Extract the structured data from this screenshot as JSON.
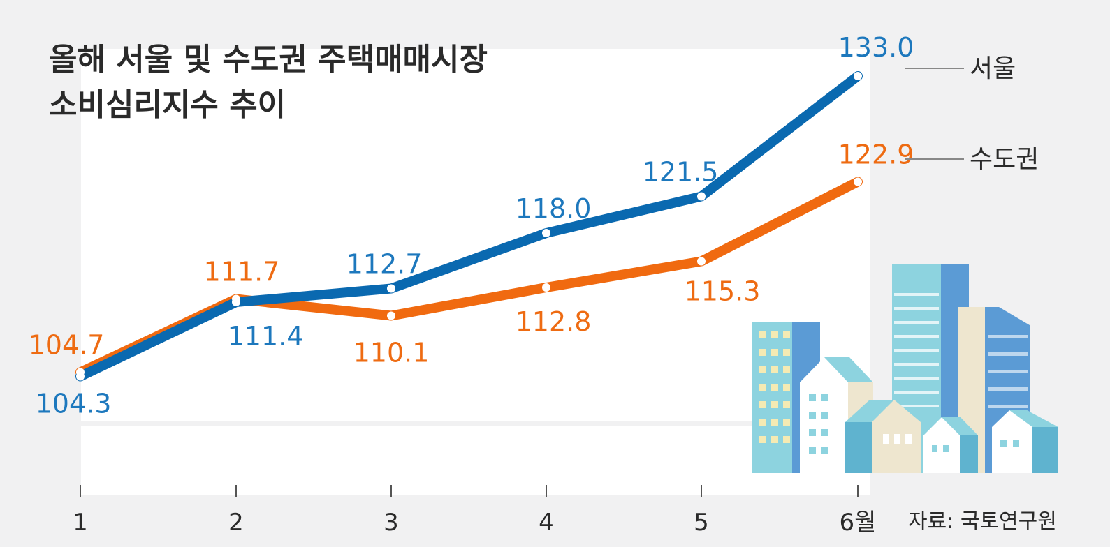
{
  "chart_data": {
    "type": "line",
    "title_lines": [
      "올해 서울 및 수도권 주택매매시장",
      "소비심리지수 추이"
    ],
    "categories": [
      "1",
      "2",
      "3",
      "4",
      "5",
      "6월"
    ],
    "series": [
      {
        "name": "서울",
        "color": "#0a69b0",
        "label_color": "#1d78bd",
        "values": [
          104.3,
          111.4,
          112.7,
          118.0,
          121.5,
          133.0
        ],
        "labels": [
          "104.3",
          "111.4",
          "112.7",
          "118.0",
          "121.5",
          "133.0"
        ]
      },
      {
        "name": "수도권",
        "color": "#f06a10",
        "label_color": "#ee6b12",
        "values": [
          104.7,
          111.7,
          110.1,
          112.8,
          115.3,
          122.9
        ],
        "labels": [
          "104.7",
          "111.7",
          "110.1",
          "112.8",
          "115.3",
          "122.9"
        ]
      }
    ],
    "ylim": [
      95,
      135
    ],
    "source": "자료: 국토연구원"
  }
}
